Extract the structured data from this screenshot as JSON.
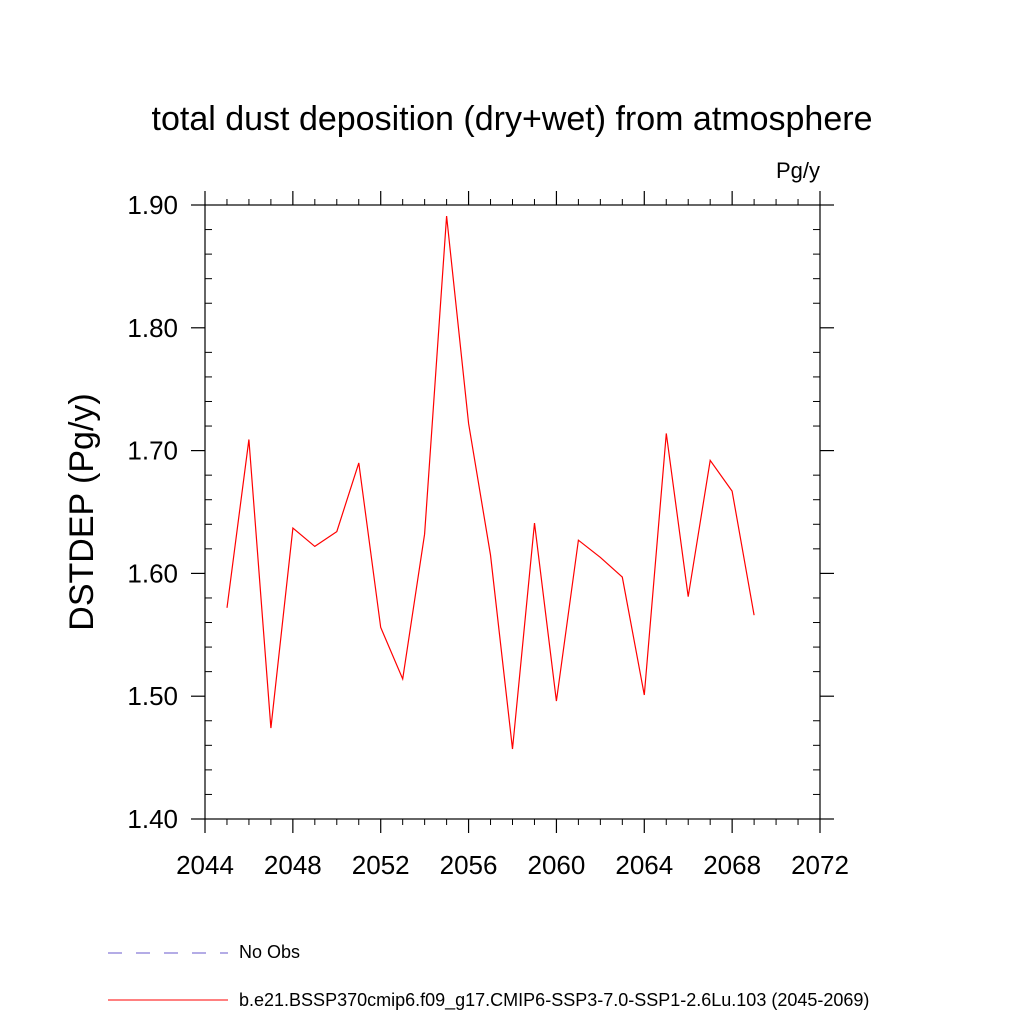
{
  "chart_data": {
    "type": "line",
    "title": "total dust deposition (dry+wet) from atmosphere",
    "units": "Pg/y",
    "ylabel": "DSTDEP  (Pg/y)",
    "xlabel": "",
    "xlim": [
      2044,
      2072
    ],
    "ylim": [
      1.4,
      1.9
    ],
    "xticks": [
      2044,
      2048,
      2052,
      2056,
      2060,
      2064,
      2068,
      2072
    ],
    "yticks": [
      1.4,
      1.5,
      1.6,
      1.7,
      1.8,
      1.9
    ],
    "ytick_labels": [
      "1.40",
      "1.50",
      "1.60",
      "1.70",
      "1.80",
      "1.90"
    ],
    "grid": false,
    "legend_placement": "bottom",
    "series": [
      {
        "name": "b.e21.BSSP370cmip6.f09_g17.CMIP6-SSP3-7.0-SSP1-2.6Lu.103 (2045-2069)",
        "color": "#ff0000",
        "style": "solid",
        "x": [
          2045,
          2046,
          2047,
          2048,
          2049,
          2050,
          2051,
          2052,
          2053,
          2054,
          2055,
          2056,
          2057,
          2058,
          2059,
          2060,
          2061,
          2062,
          2063,
          2064,
          2065,
          2066,
          2067,
          2068,
          2069
        ],
        "values": [
          1.572,
          1.709,
          1.474,
          1.637,
          1.622,
          1.634,
          1.69,
          1.556,
          1.514,
          1.632,
          1.891,
          1.722,
          1.615,
          1.457,
          1.641,
          1.496,
          1.627,
          1.613,
          1.597,
          1.501,
          1.714,
          1.581,
          1.692,
          1.667,
          1.566
        ]
      }
    ],
    "legend": [
      {
        "label": "No Obs",
        "color": "#6a5acd",
        "style": "dashed"
      },
      {
        "label": "b.e21.BSSP370cmip6.f09_g17.CMIP6-SSP3-7.0-SSP1-2.6Lu.103 (2045-2069)",
        "color": "#ff0000",
        "style": "solid"
      }
    ]
  }
}
